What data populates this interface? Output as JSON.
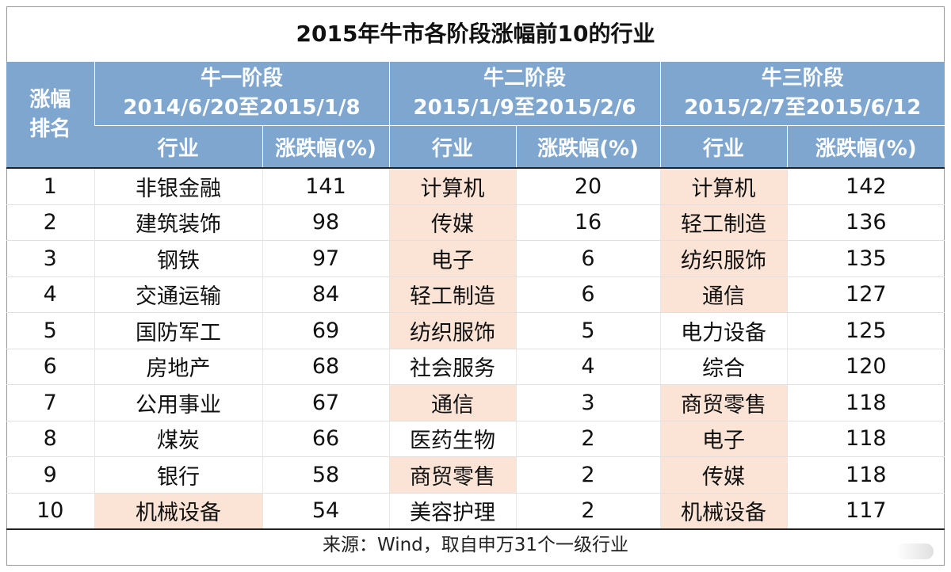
{
  "title": "2015年牛市各阶段涨幅前10的行业",
  "header": {
    "rank_label_1": "涨幅",
    "rank_label_2": "排名",
    "stages": [
      {
        "name": "牛一阶段",
        "range": "2014/6/20至2015/1/8"
      },
      {
        "name": "牛二阶段",
        "range": "2015/1/9至2015/2/6"
      },
      {
        "name": "牛三阶段",
        "range": "2015/2/7至2015/6/12"
      }
    ],
    "industry_label": "行业",
    "change_label": "涨跌幅(%)"
  },
  "rows": [
    {
      "rank": "1",
      "s1_ind": "非银金融",
      "s1_val": "141",
      "s2_ind": "计算机",
      "s2_val": "20",
      "s3_ind": "计算机",
      "s3_val": "142"
    },
    {
      "rank": "2",
      "s1_ind": "建筑装饰",
      "s1_val": "98",
      "s2_ind": "传媒",
      "s2_val": "16",
      "s3_ind": "轻工制造",
      "s3_val": "136"
    },
    {
      "rank": "3",
      "s1_ind": "钢铁",
      "s1_val": "97",
      "s2_ind": "电子",
      "s2_val": "6",
      "s3_ind": "纺织服饰",
      "s3_val": "135"
    },
    {
      "rank": "4",
      "s1_ind": "交通运输",
      "s1_val": "84",
      "s2_ind": "轻工制造",
      "s2_val": "6",
      "s3_ind": "通信",
      "s3_val": "127"
    },
    {
      "rank": "5",
      "s1_ind": "国防军工",
      "s1_val": "69",
      "s2_ind": "纺织服饰",
      "s2_val": "5",
      "s3_ind": "电力设备",
      "s3_val": "125"
    },
    {
      "rank": "6",
      "s1_ind": "房地产",
      "s1_val": "68",
      "s2_ind": "社会服务",
      "s2_val": "4",
      "s3_ind": "综合",
      "s3_val": "120"
    },
    {
      "rank": "7",
      "s1_ind": "公用事业",
      "s1_val": "67",
      "s2_ind": "通信",
      "s2_val": "3",
      "s3_ind": "商贸零售",
      "s3_val": "118"
    },
    {
      "rank": "8",
      "s1_ind": "煤炭",
      "s1_val": "66",
      "s2_ind": "医药生物",
      "s2_val": "2",
      "s3_ind": "电子",
      "s3_val": "118"
    },
    {
      "rank": "9",
      "s1_ind": "银行",
      "s1_val": "58",
      "s2_ind": "商贸零售",
      "s2_val": "2",
      "s3_ind": "传媒",
      "s3_val": "118"
    },
    {
      "rank": "10",
      "s1_ind": "机械设备",
      "s1_val": "54",
      "s2_ind": "美容护理",
      "s2_val": "2",
      "s3_ind": "机械设备",
      "s3_val": "117"
    }
  ],
  "source": "来源：Wind，取自申万31个一级行业",
  "colors": {
    "header_bg": "#7ea6cf",
    "highlight": "#fbe4d6"
  }
}
